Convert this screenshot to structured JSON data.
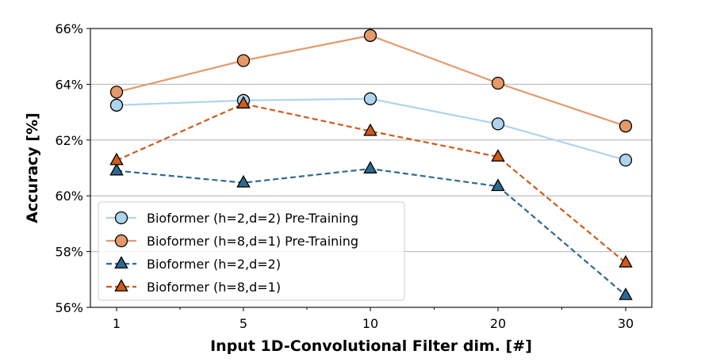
{
  "chart_data": {
    "type": "line",
    "title": "",
    "xlabel": "Input 1D-Convolutional Filter dim. [#]",
    "ylabel": "Accuracy [%]",
    "categories": [
      "1",
      "5",
      "10",
      "20",
      "30"
    ],
    "ylim": [
      56,
      66
    ],
    "yticks": [
      "56%",
      "58%",
      "60%",
      "62%",
      "64%",
      "66%"
    ],
    "grid": "horizontal",
    "legend_position": "lower-left",
    "series": [
      {
        "name": "Bioformer (h=2,d=2) Pre-Training",
        "values": [
          63.25,
          63.42,
          63.48,
          62.58,
          61.28
        ],
        "color": "#aed4ee",
        "marker": "circle",
        "linestyle": "solid"
      },
      {
        "name": "Bioformer (h=8,d=1) Pre-Training",
        "values": [
          63.72,
          64.85,
          65.75,
          64.04,
          62.5
        ],
        "color": "#e5986a",
        "marker": "circle",
        "linestyle": "solid"
      },
      {
        "name": "Bioformer (h=2,d=2)",
        "values": [
          60.9,
          60.47,
          60.97,
          60.34,
          56.43
        ],
        "color": "#2d6a93",
        "marker": "triangle",
        "linestyle": "dashed"
      },
      {
        "name": "Bioformer (h=8,d=1)",
        "values": [
          61.27,
          63.3,
          62.32,
          61.4,
          57.6
        ],
        "color": "#cf5b18",
        "marker": "triangle",
        "linestyle": "dashed"
      }
    ]
  }
}
